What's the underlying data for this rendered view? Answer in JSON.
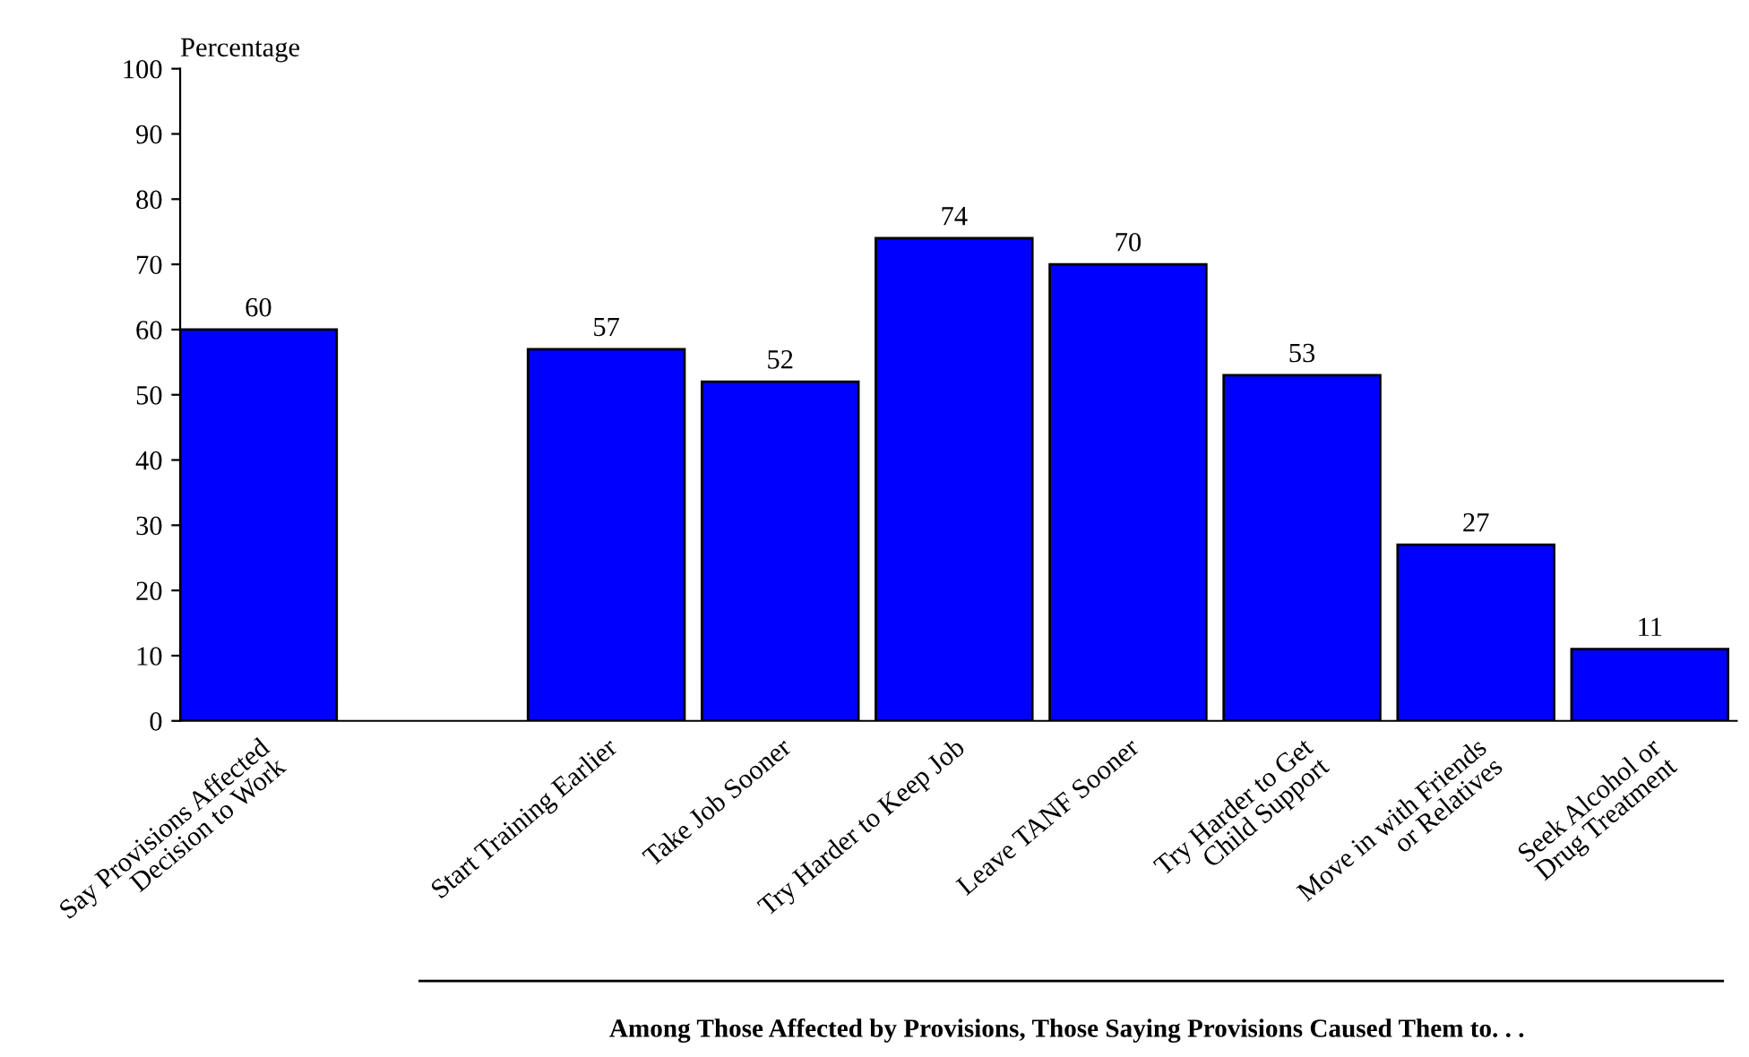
{
  "chart_data": {
    "type": "bar",
    "ylabel": "Percentage",
    "xlabel": "Among Those Affected by Provisions, Those Saying Provisions Caused Them to. . .",
    "categories": [
      "Say Provisions Affected\nDecision to Work",
      null,
      "Start Training Earlier",
      "Take Job Sooner",
      "Try Harder to Keep Job",
      "Leave TANF Sooner",
      "Try Harder to Get\nChild Support",
      "Move in with Friends\nor Relatives",
      "Seek Alcohol or\nDrug Treatment"
    ],
    "values": [
      60,
      null,
      57,
      52,
      74,
      70,
      53,
      27,
      11
    ],
    "color": "#0000ff",
    "ylim": [
      0,
      100
    ],
    "yticks": [
      0,
      10,
      20,
      30,
      40,
      50,
      60,
      70,
      80,
      90,
      100
    ],
    "grid": false,
    "data_labels": true
  }
}
